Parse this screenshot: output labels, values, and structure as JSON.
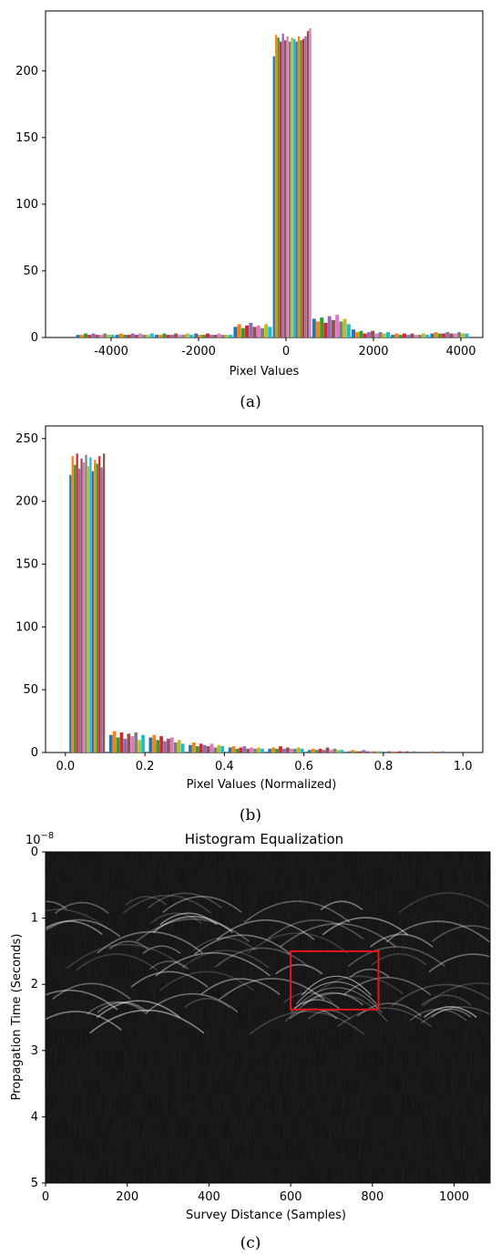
{
  "chart_data": [
    {
      "type": "bar",
      "caption": "(a)",
      "xlabel": "Pixel Values",
      "xlim": [
        -5500,
        4500
      ],
      "ylim": [
        0,
        245
      ],
      "xticks": [
        "-4000",
        "-2000",
        "0",
        "2000",
        "4000"
      ],
      "yticks": [
        "0",
        "50",
        "100",
        "150",
        "200"
      ],
      "bin_width": 880,
      "bins": [
        {
          "x": -4800,
          "values": [
            2,
            2,
            3,
            2,
            3,
            2,
            2,
            3,
            2,
            2
          ]
        },
        {
          "x": -3900,
          "values": [
            2,
            3,
            2,
            2,
            3,
            2,
            3,
            2,
            2,
            3
          ]
        },
        {
          "x": -3000,
          "values": [
            2,
            2,
            3,
            2,
            2,
            3,
            2,
            2,
            3,
            2
          ]
        },
        {
          "x": -2100,
          "values": [
            3,
            2,
            2,
            3,
            2,
            2,
            3,
            2,
            2,
            2
          ]
        },
        {
          "x": -1200,
          "values": [
            8,
            10,
            7,
            9,
            11,
            8,
            9,
            7,
            10,
            8
          ]
        },
        {
          "x": -300,
          "values": [
            211,
            227,
            225,
            222,
            228,
            223,
            226,
            222,
            225,
            224,
            222,
            226,
            223,
            224,
            226,
            230,
            232
          ]
        },
        {
          "x": 600,
          "values": [
            14,
            12,
            15,
            11,
            16,
            13,
            17,
            12,
            14,
            10
          ]
        },
        {
          "x": 1500,
          "values": [
            6,
            4,
            5,
            3,
            4,
            5,
            3,
            4,
            3,
            4
          ]
        },
        {
          "x": 2400,
          "values": [
            2,
            3,
            2,
            3,
            2,
            3,
            2,
            2,
            3,
            2
          ]
        },
        {
          "x": 3300,
          "values": [
            3,
            4,
            3,
            3,
            4,
            3,
            3,
            4,
            3,
            3
          ]
        }
      ]
    },
    {
      "type": "bar",
      "caption": "(b)",
      "xlabel": "Pixel Values (Normalized)",
      "xlim": [
        -0.05,
        1.05
      ],
      "ylim": [
        0,
        260
      ],
      "xticks": [
        "0.0",
        "0.2",
        "0.4",
        "0.6",
        "0.8",
        "1.0"
      ],
      "yticks": [
        "0",
        "50",
        "100",
        "150",
        "200",
        "250"
      ],
      "bin_width": 0.09,
      "bins": [
        {
          "x": 0.01,
          "values": [
            221,
            236,
            229,
            238,
            226,
            234,
            231,
            237,
            228,
            235,
            224,
            233,
            230,
            236,
            227,
            238
          ]
        },
        {
          "x": 0.11,
          "values": [
            14,
            17,
            12,
            16,
            11,
            15,
            13,
            16,
            10,
            14
          ]
        },
        {
          "x": 0.21,
          "values": [
            12,
            14,
            10,
            13,
            9,
            11,
            12,
            8,
            10,
            7
          ]
        },
        {
          "x": 0.31,
          "values": [
            6,
            8,
            5,
            7,
            6,
            5,
            7,
            4,
            6,
            5
          ]
        },
        {
          "x": 0.41,
          "values": [
            4,
            5,
            3,
            4,
            5,
            3,
            4,
            3,
            4,
            3
          ]
        },
        {
          "x": 0.51,
          "values": [
            3,
            4,
            3,
            5,
            3,
            4,
            3,
            3,
            4,
            3
          ]
        },
        {
          "x": 0.61,
          "values": [
            2,
            3,
            2,
            3,
            2,
            4,
            2,
            3,
            2,
            2
          ]
        },
        {
          "x": 0.71,
          "values": [
            1,
            2,
            1,
            1,
            2,
            1,
            1,
            1,
            1,
            1
          ]
        },
        {
          "x": 0.81,
          "values": [
            1,
            1,
            0,
            1,
            0,
            1,
            0,
            1,
            0,
            0
          ]
        },
        {
          "x": 0.91,
          "values": [
            0,
            1,
            0,
            0,
            1,
            0,
            0,
            0,
            0,
            0
          ]
        }
      ]
    },
    {
      "type": "heatmap",
      "caption": "(c)",
      "title": "Histogram Equalization",
      "xlabel": "Survey Distance (Samples)",
      "ylabel": "Propagation Time (Seconds)",
      "offset_label": "10−8",
      "xlim": [
        0,
        1088
      ],
      "ylim": [
        5,
        0
      ],
      "xticks": [
        "0",
        "200",
        "400",
        "600",
        "800",
        "1000"
      ],
      "yticks": [
        "0",
        "1",
        "2",
        "3",
        "4",
        "5"
      ],
      "highlight_box": {
        "x0": 600,
        "x1": 815,
        "y0": 1.5,
        "y1": 2.38
      }
    }
  ],
  "colors": [
    "#1f77b4",
    "#ff7f0e",
    "#2ca02c",
    "#d62728",
    "#9467bd",
    "#8c564b",
    "#e377c2",
    "#7f7f7f",
    "#bcbd22",
    "#17becf"
  ],
  "box_color": "#e8141b"
}
